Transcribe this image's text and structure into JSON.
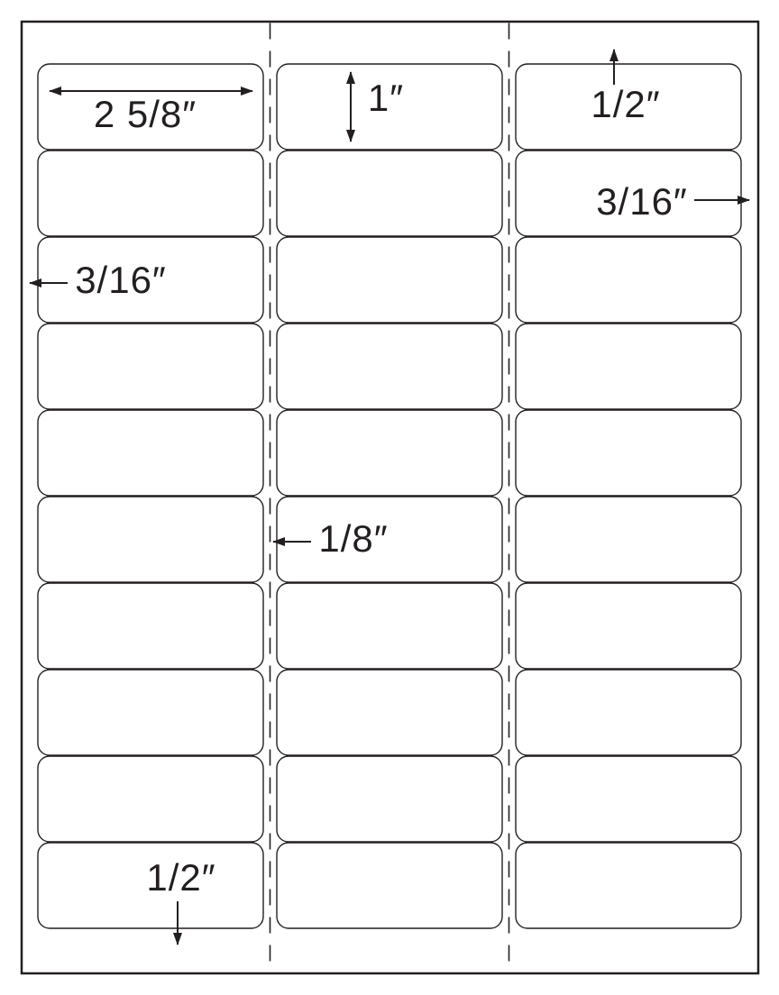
{
  "diagram": {
    "kind": "label-sheet-template",
    "colors": {
      "line": "#231f20",
      "background": "#ffffff"
    },
    "sheet": {
      "rows": 10,
      "columns": 3,
      "label_count": 30
    },
    "annotations": {
      "label_width": "2 5/8″",
      "label_height": "1″",
      "top_margin": "1/2″",
      "right_margin": "3/16″",
      "left_margin": "3/16″",
      "column_gap": "1/8″",
      "bottom_margin": "1/2″"
    }
  }
}
